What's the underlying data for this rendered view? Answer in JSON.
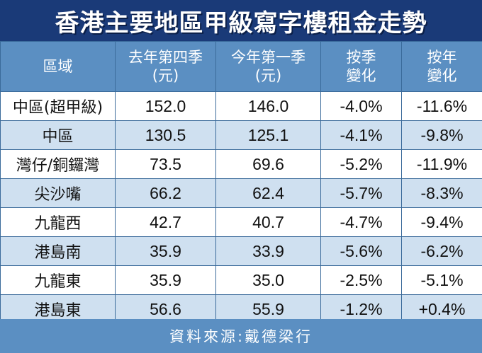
{
  "title": "香港主要地區甲級寫字樓租金走勢",
  "header": {
    "region": "區域",
    "prev_q_line1": "去年第四季",
    "prev_q_line2": "(元)",
    "curr_q_line1": "今年第一季",
    "curr_q_line2": "(元)",
    "qoq_line1": "按季",
    "qoq_line2": "變化",
    "yoy_line1": "按年",
    "yoy_line2": "變化"
  },
  "rows": [
    {
      "region": "中區(超甲級)",
      "prev": "152.0",
      "curr": "146.0",
      "qoq": "-4.0%",
      "yoy": "-11.6%"
    },
    {
      "region": "中區",
      "prev": "130.5",
      "curr": "125.1",
      "qoq": "-4.1%",
      "yoy": "-9.8%"
    },
    {
      "region": "灣仔/銅鑼灣",
      "prev": "73.5",
      "curr": "69.6",
      "qoq": "-5.2%",
      "yoy": "-11.9%"
    },
    {
      "region": "尖沙嘴",
      "prev": "66.2",
      "curr": "62.4",
      "qoq": "-5.7%",
      "yoy": "-8.3%"
    },
    {
      "region": "九龍西",
      "prev": "42.7",
      "curr": "40.7",
      "qoq": "-4.7%",
      "yoy": "-9.4%"
    },
    {
      "region": "港島南",
      "prev": "35.9",
      "curr": "33.9",
      "qoq": "-5.6%",
      "yoy": "-6.2%"
    },
    {
      "region": "九龍東",
      "prev": "35.9",
      "curr": "35.0",
      "qoq": "-2.5%",
      "yoy": "-5.1%"
    },
    {
      "region": "港島東",
      "prev": "56.6",
      "curr": "55.9",
      "qoq": "-1.2%",
      "yoy": "+0.4%"
    }
  ],
  "source": "資料來源:戴德梁行",
  "chart_data": {
    "type": "table",
    "title": "香港主要地區甲級寫字樓租金走勢",
    "columns": [
      "區域",
      "去年第四季(元)",
      "今年第一季(元)",
      "按季變化",
      "按年變化"
    ],
    "categories": [
      "中區(超甲級)",
      "中區",
      "灣仔/銅鑼灣",
      "尖沙嘴",
      "九龍西",
      "港島南",
      "九龍東",
      "港島東"
    ],
    "series": [
      {
        "name": "去年第四季(元)",
        "values": [
          152.0,
          130.5,
          73.5,
          66.2,
          42.7,
          35.9,
          35.9,
          56.6
        ]
      },
      {
        "name": "今年第一季(元)",
        "values": [
          146.0,
          125.1,
          69.6,
          62.4,
          40.7,
          33.9,
          35.0,
          55.9
        ]
      },
      {
        "name": "按季變化",
        "values": [
          -4.0,
          -4.1,
          -5.2,
          -5.7,
          -4.7,
          -5.6,
          -2.5,
          -1.2
        ]
      },
      {
        "name": "按年變化",
        "values": [
          -11.6,
          -9.8,
          -11.9,
          -8.3,
          -9.4,
          -6.2,
          -5.1,
          0.4
        ]
      }
    ],
    "source": "資料來源:戴德梁行"
  }
}
